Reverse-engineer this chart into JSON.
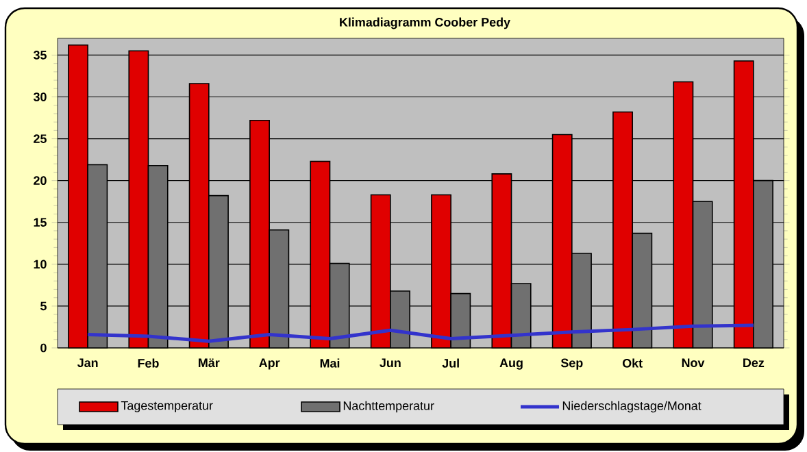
{
  "chart_data": {
    "type": "bar",
    "title": "Klimadiagramm Coober Pedy",
    "categories": [
      "Jan",
      "Feb",
      "Mär",
      "Apr",
      "Mai",
      "Jun",
      "Jul",
      "Aug",
      "Sep",
      "Okt",
      "Nov",
      "Dez"
    ],
    "series": [
      {
        "name": "Tagestemperatur",
        "color": "#e00000",
        "values": [
          36.2,
          35.5,
          31.6,
          27.2,
          22.3,
          18.3,
          18.3,
          20.8,
          25.5,
          28.2,
          31.8,
          34.3
        ]
      },
      {
        "name": "Nachttemperatur",
        "color": "#707070",
        "values": [
          21.9,
          21.8,
          18.2,
          14.1,
          10.1,
          6.8,
          6.5,
          7.7,
          11.3,
          13.7,
          17.5,
          20.0
        ]
      },
      {
        "name": "Niederschlagstage/Monat",
        "type": "line",
        "color": "#3333cc",
        "values": [
          1.6,
          1.4,
          0.8,
          1.6,
          1.1,
          2.1,
          1.1,
          1.5,
          1.9,
          2.2,
          2.6,
          2.7
        ]
      }
    ],
    "ylim": [
      0,
      37
    ],
    "yticks": [
      0,
      5,
      10,
      15,
      20,
      25,
      30,
      35
    ],
    "grid": "y",
    "legend": "bottom",
    "marker": "none"
  }
}
